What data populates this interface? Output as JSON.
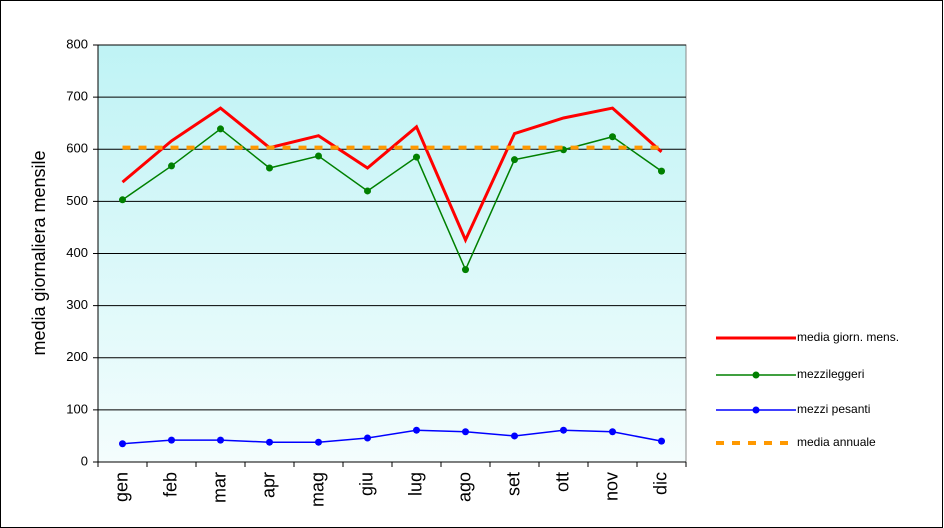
{
  "chart_data": {
    "type": "line",
    "y_label": "media giornaliera mensile",
    "categories": [
      "gen",
      "feb",
      "mar",
      "apr",
      "mag",
      "giu",
      "lug",
      "ago",
      "set",
      "ott",
      "nov",
      "dic"
    ],
    "series": [
      {
        "name": "media giorn. mens.",
        "color": "#ff0000",
        "width": 3,
        "marker": false,
        "dashed": false,
        "values": [
          537,
          616,
          679,
          603,
          626,
          564,
          643,
          426,
          630,
          660,
          679,
          595
        ]
      },
      {
        "name": "mezzileggeri",
        "color": "#008000",
        "width": 1.5,
        "marker": true,
        "dashed": false,
        "values": [
          503,
          568,
          639,
          564,
          587,
          520,
          585,
          369,
          580,
          599,
          624,
          558
        ]
      },
      {
        "name": "mezzi pesanti",
        "color": "#0000ff",
        "width": 1.5,
        "marker": true,
        "dashed": false,
        "values": [
          35,
          42,
          42,
          38,
          38,
          46,
          61,
          58,
          50,
          61,
          58,
          40
        ]
      },
      {
        "name": "media annuale",
        "color": "#ff9900",
        "width": 4,
        "marker": false,
        "dashed": true,
        "values": [
          603,
          603,
          603,
          603,
          603,
          603,
          603,
          603,
          603,
          603,
          603,
          603
        ]
      }
    ],
    "ylim": [
      0,
      800
    ],
    "yticks": [
      0,
      100,
      200,
      300,
      400,
      500,
      600,
      700,
      800
    ],
    "grid": true
  }
}
